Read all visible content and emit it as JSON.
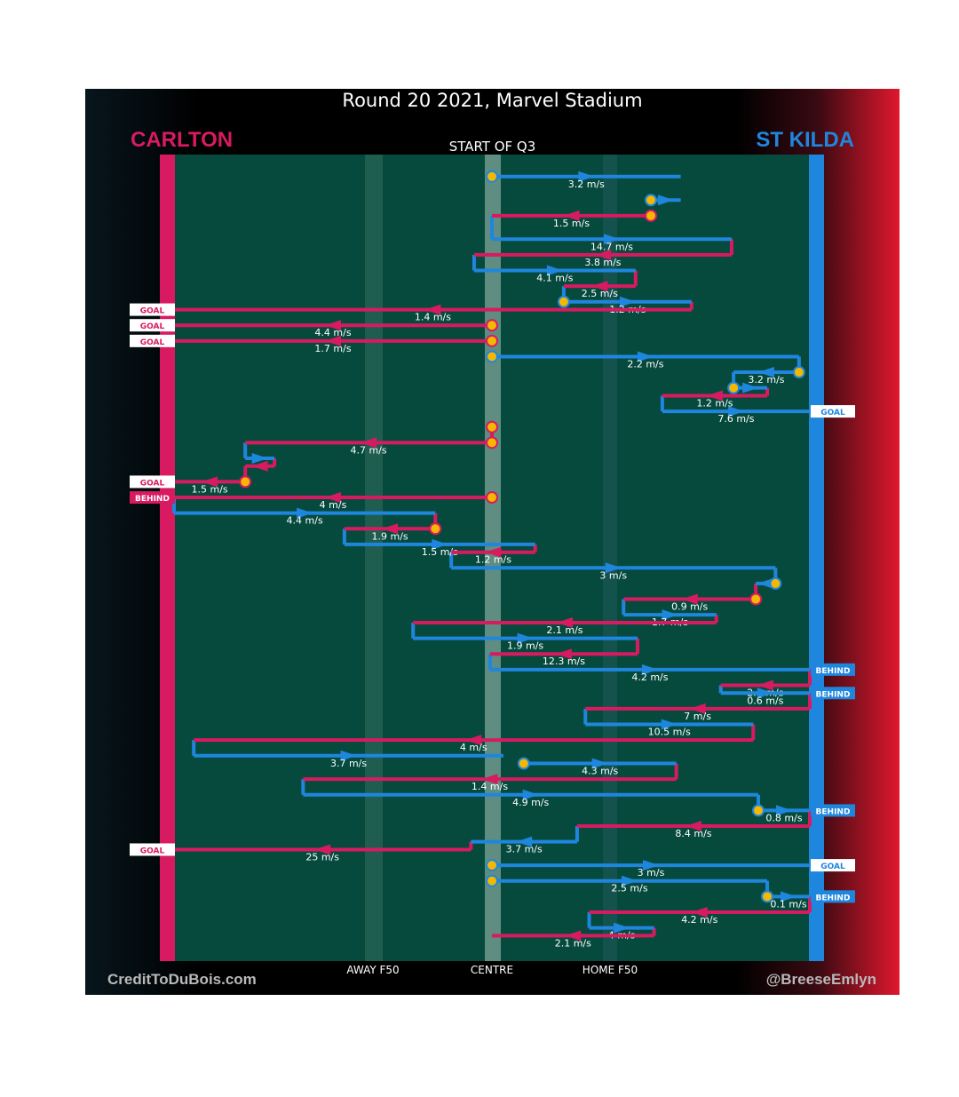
{
  "title": "Round 20 2021, Marvel Stadium",
  "quarter_label": "START OF Q3",
  "teams": {
    "left": {
      "name": "CARLTON",
      "color": "#d81a60"
    },
    "right": {
      "name": "ST KILDA",
      "color": "#1f86de"
    }
  },
  "credits": {
    "left": "CreditToDuBois.com",
    "right": "@BreeseEmlyn"
  },
  "zone_labels": {
    "away": "AWAY F50",
    "centre": "CENTRE",
    "home": "HOME F50"
  },
  "colors": {
    "field": "#064a3e",
    "ball_up": "#f5b800"
  },
  "chart_data": {
    "type": "chain-flow",
    "x_range": [
      0,
      100
    ],
    "row_range": [
      0,
      100
    ],
    "row_scale_note": "x: 0 = Carlton goal line, 50 = centre, 100 = St Kilda goal line",
    "chains": [
      {
        "team": "stkilda",
        "row": 1,
        "x0": 50,
        "x1": 79.7,
        "speed": "3.2 m/s",
        "stoppage": true
      },
      {
        "team": "stkilda",
        "row": 4,
        "x0": 75,
        "x1": 79.7,
        "speed": "",
        "stoppage": true
      },
      {
        "team": "carlton",
        "row": 6,
        "x0": 75,
        "x1": 50,
        "speed": "1.5 m/s",
        "stoppage": true
      },
      {
        "team": "stkilda",
        "row": 9,
        "x0": 50,
        "x1": 87.7,
        "speed": "14.7 m/s"
      },
      {
        "team": "carlton",
        "row": 11,
        "x0": 87.7,
        "x1": 47.2,
        "speed": "3.8 m/s"
      },
      {
        "team": "stkilda",
        "row": 13,
        "x0": 47.2,
        "x1": 72.6,
        "speed": "4.1 m/s"
      },
      {
        "team": "carlton",
        "row": 15,
        "x0": 72.6,
        "x1": 61.3,
        "speed": "2.5 m/s"
      },
      {
        "team": "stkilda",
        "row": 17,
        "x0": 61.3,
        "x1": 81.4,
        "speed": "1.2 m/s",
        "stoppage": true
      },
      {
        "team": "carlton",
        "row": 18,
        "x0": 81.4,
        "x1": 0,
        "speed": "1.4 m/s",
        "outcome": "GOAL"
      },
      {
        "team": "carlton",
        "row": 20,
        "x0": 50,
        "x1": 0,
        "speed": "4.4 m/s",
        "stoppage": true,
        "outcome": "GOAL"
      },
      {
        "team": "carlton",
        "row": 22,
        "x0": 50,
        "x1": 0,
        "speed": "1.7 m/s",
        "stoppage": true,
        "outcome": "GOAL"
      },
      {
        "team": "stkilda",
        "row": 24,
        "x0": 50,
        "x1": 98.3,
        "speed": "2.2 m/s",
        "stoppage": true
      },
      {
        "team": "stkilda",
        "row": 26,
        "x0": 98.3,
        "x1": 88,
        "speed": "3.2 m/s",
        "stoppage": true
      },
      {
        "team": "stkilda",
        "row": 28,
        "x0": 88,
        "x1": 93.3,
        "speed": "",
        "stoppage": true
      },
      {
        "team": "carlton",
        "row": 29,
        "x0": 93.3,
        "x1": 76.8,
        "speed": "1.2 m/s"
      },
      {
        "team": "stkilda",
        "row": 31,
        "x0": 76.8,
        "x1": 100,
        "speed": "7.6 m/s",
        "outcome": "GOAL"
      },
      {
        "team": "carlton",
        "row": 33,
        "x0": 50,
        "x1": 50,
        "speed": "",
        "stoppage": true
      },
      {
        "team": "carlton",
        "row": 35,
        "x0": 50,
        "x1": 11.2,
        "speed": "4.7 m/s",
        "stoppage": true
      },
      {
        "team": "stkilda",
        "row": 37,
        "x0": 11.2,
        "x1": 15.8,
        "speed": ""
      },
      {
        "team": "carlton",
        "row": 38,
        "x0": 15.8,
        "x1": 11.2,
        "speed": ""
      },
      {
        "team": "carlton",
        "row": 40,
        "x0": 11.2,
        "x1": 0,
        "speed": "1.5 m/s",
        "stoppage": true,
        "outcome": "GOAL"
      },
      {
        "team": "carlton",
        "row": 42,
        "x0": 50,
        "x1": 0,
        "speed": "4 m/s",
        "stoppage": true,
        "outcome": "BEHIND"
      },
      {
        "team": "stkilda",
        "row": 44,
        "x0": 0,
        "x1": 41.1,
        "speed": "4.4 m/s"
      },
      {
        "team": "carlton",
        "row": 46,
        "x0": 41.1,
        "x1": 26.8,
        "speed": "1.9 m/s",
        "stoppage": true
      },
      {
        "team": "stkilda",
        "row": 48,
        "x0": 26.8,
        "x1": 56.8,
        "speed": "1.5 m/s"
      },
      {
        "team": "carlton",
        "row": 49,
        "x0": 56.8,
        "x1": 43.6,
        "speed": "1.2 m/s"
      },
      {
        "team": "stkilda",
        "row": 51,
        "x0": 43.6,
        "x1": 94.6,
        "speed": "3 m/s"
      },
      {
        "team": "stkilda",
        "row": 53,
        "x0": 94.6,
        "x1": 91.5,
        "speed": "",
        "stoppage": true
      },
      {
        "team": "carlton",
        "row": 55,
        "x0": 91.5,
        "x1": 70.7,
        "speed": "0.9 m/s",
        "stoppage": true
      },
      {
        "team": "stkilda",
        "row": 57,
        "x0": 70.7,
        "x1": 85.3,
        "speed": "1.7 m/s"
      },
      {
        "team": "carlton",
        "row": 58,
        "x0": 85.3,
        "x1": 37.6,
        "speed": "2.1 m/s"
      },
      {
        "team": "stkilda",
        "row": 60,
        "x0": 37.6,
        "x1": 72.9,
        "speed": "1.9 m/s"
      },
      {
        "team": "carlton",
        "row": 62,
        "x0": 72.9,
        "x1": 49.7,
        "speed": "12.3 m/s"
      },
      {
        "team": "stkilda",
        "row": 64,
        "x0": 49.7,
        "x1": 100,
        "speed": "4.2 m/s",
        "outcome": "BEHIND"
      },
      {
        "team": "carlton",
        "row": 66,
        "x0": 100,
        "x1": 86,
        "speed": "2.5 m/s"
      },
      {
        "team": "stkilda",
        "row": 67,
        "x0": 86,
        "x1": 100,
        "speed": "0.6 m/s",
        "outcome": "BEHIND"
      },
      {
        "team": "carlton",
        "row": 69,
        "x0": 100,
        "x1": 64.7,
        "speed": "7 m/s"
      },
      {
        "team": "stkilda",
        "row": 71,
        "x0": 64.7,
        "x1": 91.1,
        "speed": "10.5 m/s"
      },
      {
        "team": "carlton",
        "row": 73,
        "x0": 91.1,
        "x1": 3.1,
        "speed": "4 m/s"
      },
      {
        "team": "stkilda",
        "row": 75,
        "x0": 3.1,
        "x1": 51.8,
        "speed": "3.7 m/s"
      },
      {
        "team": "stkilda",
        "row": 76,
        "x0": 55,
        "x1": 79,
        "speed": "4.3 m/s",
        "stoppage": true
      },
      {
        "team": "carlton",
        "row": 78,
        "x0": 79,
        "x1": 20.3,
        "speed": "1.4 m/s"
      },
      {
        "team": "stkilda",
        "row": 80,
        "x0": 20.3,
        "x1": 91.9,
        "speed": "4.9 m/s"
      },
      {
        "team": "stkilda",
        "row": 82,
        "x0": 91.9,
        "x1": 100,
        "speed": "0.8 m/s",
        "stoppage": true,
        "outcome": "BEHIND"
      },
      {
        "team": "carlton",
        "row": 84,
        "x0": 100,
        "x1": 63.4,
        "speed": "8.4 m/s"
      },
      {
        "team": "stkilda",
        "row": 86,
        "x0": 63.4,
        "x1": 46.7,
        "speed": "3.7 m/s"
      },
      {
        "team": "carlton",
        "row": 87,
        "x0": 46.7,
        "x1": 0,
        "speed": "25 m/s",
        "outcome": "GOAL"
      },
      {
        "team": "stkilda",
        "row": 89,
        "x0": 50,
        "x1": 100,
        "speed": "3 m/s",
        "stoppage": true,
        "outcome": "GOAL"
      },
      {
        "team": "stkilda",
        "row": 91,
        "x0": 50,
        "x1": 93.3,
        "speed": "2.5 m/s",
        "stoppage": true
      },
      {
        "team": "stkilda",
        "row": 93,
        "x0": 93.3,
        "x1": 100,
        "speed": "0.1 m/s",
        "stoppage": true,
        "outcome": "BEHIND"
      },
      {
        "team": "carlton",
        "row": 95,
        "x0": 100,
        "x1": 65.3,
        "speed": "4.2 m/s"
      },
      {
        "team": "stkilda",
        "row": 97,
        "x0": 65.3,
        "x1": 75.5,
        "speed": "4 m/s"
      },
      {
        "team": "carlton",
        "row": 98,
        "x0": 75.5,
        "x1": 50,
        "speed": "2.1 m/s"
      }
    ]
  }
}
